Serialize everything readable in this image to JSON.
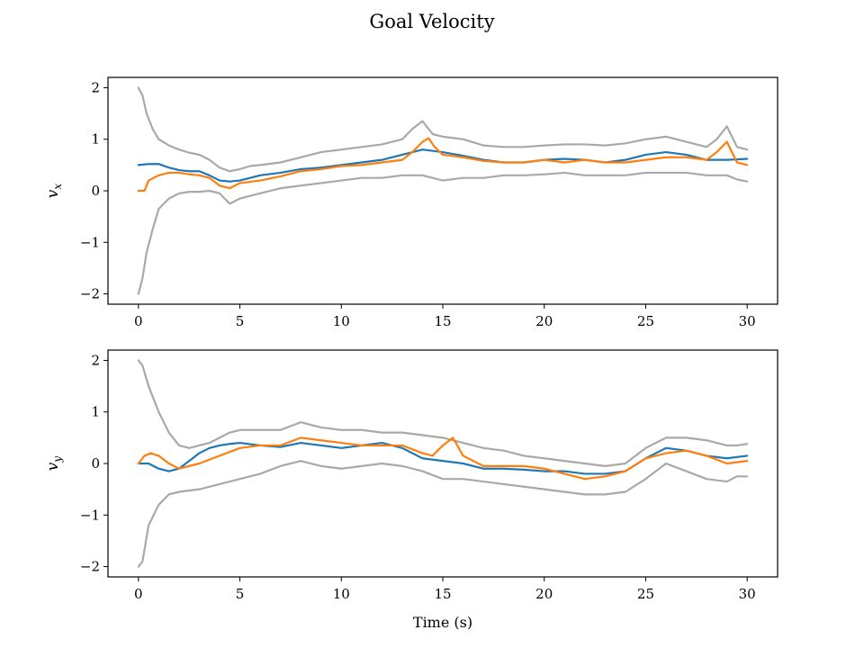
{
  "figure": {
    "title": "Goal Velocity",
    "xlabel": "Time (s)"
  },
  "chart_data": [
    {
      "type": "line",
      "title": "",
      "xlabel": "",
      "ylabel": "v_x",
      "ylabel_main": "v",
      "ylabel_sub": "x",
      "xlim": [
        -1.5,
        31.5
      ],
      "ylim": [
        -2.2,
        2.2
      ],
      "xticks": [
        0,
        5,
        10,
        15,
        20,
        25,
        30
      ],
      "yticks": [
        -2,
        -1,
        0,
        1,
        2
      ],
      "ytick_labels": [
        "−2",
        "−1",
        "0",
        "1",
        "2"
      ],
      "grid": false,
      "series": [
        {
          "color": "#a9a9a9",
          "x": [
            0,
            0.2,
            0.4,
            0.7,
            1,
            1.5,
            2,
            2.5,
            3,
            3.5,
            4,
            4.5,
            5,
            5.5,
            6,
            7,
            8,
            9,
            10,
            11,
            12,
            13,
            13.5,
            14,
            14.5,
            15,
            16,
            17,
            18,
            19,
            20,
            21,
            22,
            23,
            24,
            25,
            26,
            27,
            28,
            28.5,
            29,
            29.5,
            30
          ],
          "y": [
            2.0,
            1.85,
            1.5,
            1.2,
            1.0,
            0.88,
            0.8,
            0.74,
            0.7,
            0.6,
            0.45,
            0.38,
            0.42,
            0.48,
            0.5,
            0.55,
            0.65,
            0.75,
            0.8,
            0.85,
            0.9,
            1.0,
            1.2,
            1.35,
            1.1,
            1.05,
            1.0,
            0.88,
            0.85,
            0.85,
            0.88,
            0.9,
            0.9,
            0.88,
            0.92,
            1.0,
            1.05,
            0.95,
            0.85,
            1.0,
            1.25,
            0.85,
            0.8
          ]
        },
        {
          "color": "#a9a9a9",
          "x": [
            0,
            0.2,
            0.4,
            0.7,
            1,
            1.5,
            2,
            2.5,
            3,
            3.5,
            4,
            4.5,
            5,
            5.5,
            6,
            7,
            8,
            9,
            10,
            11,
            12,
            13,
            14,
            15,
            16,
            17,
            18,
            19,
            20,
            21,
            22,
            23,
            24,
            25,
            26,
            27,
            28,
            29,
            29.5,
            30
          ],
          "y": [
            -2.0,
            -1.7,
            -1.2,
            -0.75,
            -0.35,
            -0.15,
            -0.05,
            -0.02,
            -0.02,
            0.0,
            -0.05,
            -0.25,
            -0.15,
            -0.1,
            -0.05,
            0.05,
            0.1,
            0.15,
            0.2,
            0.25,
            0.25,
            0.3,
            0.3,
            0.2,
            0.25,
            0.25,
            0.3,
            0.3,
            0.32,
            0.35,
            0.3,
            0.3,
            0.3,
            0.35,
            0.35,
            0.35,
            0.3,
            0.3,
            0.22,
            0.18
          ]
        },
        {
          "color": "#1f77b4",
          "x": [
            0,
            0.5,
            1,
            1.5,
            2,
            2.5,
            3,
            3.5,
            4,
            4.5,
            5,
            6,
            7,
            8,
            9,
            10,
            11,
            12,
            13,
            14,
            15,
            16,
            17,
            18,
            19,
            20,
            21,
            22,
            23,
            24,
            25,
            26,
            27,
            28,
            29,
            30
          ],
          "y": [
            0.5,
            0.52,
            0.52,
            0.45,
            0.4,
            0.38,
            0.38,
            0.3,
            0.2,
            0.18,
            0.2,
            0.3,
            0.35,
            0.42,
            0.45,
            0.5,
            0.55,
            0.6,
            0.7,
            0.8,
            0.75,
            0.68,
            0.6,
            0.55,
            0.55,
            0.6,
            0.62,
            0.6,
            0.55,
            0.6,
            0.7,
            0.75,
            0.7,
            0.6,
            0.6,
            0.62
          ]
        },
        {
          "color": "#ff7f0e",
          "x": [
            0,
            0.3,
            0.5,
            1,
            1.5,
            2,
            2.5,
            3,
            3.5,
            4,
            4.5,
            5,
            6,
            7,
            8,
            9,
            10,
            11,
            12,
            13,
            13.5,
            14,
            14.3,
            14.6,
            15,
            16,
            17,
            18,
            19,
            20,
            21,
            22,
            23,
            24,
            25,
            26,
            27,
            28,
            28.5,
            29,
            29.5,
            30
          ],
          "y": [
            0.0,
            0.0,
            0.2,
            0.3,
            0.35,
            0.35,
            0.32,
            0.3,
            0.25,
            0.1,
            0.05,
            0.15,
            0.2,
            0.28,
            0.38,
            0.42,
            0.48,
            0.5,
            0.55,
            0.6,
            0.75,
            0.95,
            1.02,
            0.85,
            0.7,
            0.65,
            0.58,
            0.55,
            0.55,
            0.6,
            0.55,
            0.6,
            0.55,
            0.55,
            0.6,
            0.65,
            0.65,
            0.6,
            0.75,
            0.95,
            0.55,
            0.5
          ]
        }
      ]
    },
    {
      "type": "line",
      "title": "",
      "xlabel": "",
      "ylabel": "v_y",
      "ylabel_main": "v",
      "ylabel_sub": "y",
      "xlim": [
        -1.5,
        31.5
      ],
      "ylim": [
        -2.2,
        2.2
      ],
      "xticks": [
        0,
        5,
        10,
        15,
        20,
        25,
        30
      ],
      "yticks": [
        -2,
        -1,
        0,
        1,
        2
      ],
      "ytick_labels": [
        "−2",
        "−1",
        "0",
        "1",
        "2"
      ],
      "grid": false,
      "series": [
        {
          "color": "#a9a9a9",
          "x": [
            0,
            0.2,
            0.5,
            1,
            1.5,
            2,
            2.5,
            3,
            3.5,
            4,
            4.5,
            5,
            6,
            7,
            8,
            9,
            10,
            11,
            12,
            13,
            14,
            15,
            16,
            17,
            18,
            19,
            20,
            21,
            22,
            23,
            24,
            25,
            26,
            27,
            28,
            29,
            29.5,
            30
          ],
          "y": [
            2.0,
            1.9,
            1.5,
            1.0,
            0.6,
            0.35,
            0.3,
            0.35,
            0.4,
            0.5,
            0.6,
            0.65,
            0.65,
            0.65,
            0.8,
            0.7,
            0.65,
            0.65,
            0.6,
            0.6,
            0.55,
            0.5,
            0.4,
            0.3,
            0.25,
            0.15,
            0.1,
            0.05,
            0.0,
            -0.05,
            0.0,
            0.3,
            0.5,
            0.5,
            0.45,
            0.35,
            0.35,
            0.38
          ]
        },
        {
          "color": "#a9a9a9",
          "x": [
            0,
            0.2,
            0.5,
            1,
            1.5,
            2,
            3,
            4,
            5,
            6,
            7,
            8,
            9,
            10,
            11,
            12,
            13,
            14,
            15,
            16,
            17,
            18,
            19,
            20,
            21,
            22,
            23,
            24,
            25,
            26,
            27,
            28,
            29,
            29.5,
            30
          ],
          "y": [
            -2.0,
            -1.9,
            -1.2,
            -0.8,
            -0.6,
            -0.55,
            -0.5,
            -0.4,
            -0.3,
            -0.2,
            -0.05,
            0.05,
            -0.05,
            -0.1,
            -0.05,
            0.0,
            -0.05,
            -0.15,
            -0.3,
            -0.3,
            -0.35,
            -0.4,
            -0.45,
            -0.5,
            -0.55,
            -0.6,
            -0.6,
            -0.55,
            -0.3,
            0.0,
            -0.15,
            -0.3,
            -0.35,
            -0.25,
            -0.25
          ]
        },
        {
          "color": "#1f77b4",
          "x": [
            0,
            0.5,
            1,
            1.5,
            2,
            2.5,
            3,
            3.5,
            4,
            4.5,
            5,
            6,
            7,
            8,
            9,
            10,
            11,
            12,
            13,
            14,
            15,
            16,
            17,
            18,
            19,
            20,
            21,
            22,
            23,
            24,
            25,
            26,
            27,
            28,
            29,
            30
          ],
          "y": [
            0.0,
            0.0,
            -0.1,
            -0.15,
            -0.1,
            0.05,
            0.2,
            0.3,
            0.35,
            0.38,
            0.4,
            0.35,
            0.32,
            0.4,
            0.35,
            0.3,
            0.35,
            0.4,
            0.3,
            0.1,
            0.05,
            0.0,
            -0.1,
            -0.1,
            -0.12,
            -0.15,
            -0.15,
            -0.2,
            -0.2,
            -0.15,
            0.1,
            0.3,
            0.25,
            0.15,
            0.1,
            0.15
          ]
        },
        {
          "color": "#ff7f0e",
          "x": [
            0,
            0.3,
            0.6,
            1,
            1.5,
            2,
            3,
            4,
            5,
            6,
            7,
            8,
            9,
            10,
            11,
            12,
            13,
            14,
            14.5,
            15,
            15.5,
            16,
            17,
            18,
            19,
            20,
            21,
            22,
            23,
            24,
            25,
            26,
            27,
            28,
            29,
            30
          ],
          "y": [
            0.0,
            0.15,
            0.2,
            0.15,
            0.0,
            -0.1,
            0.0,
            0.15,
            0.3,
            0.35,
            0.35,
            0.5,
            0.45,
            0.4,
            0.35,
            0.35,
            0.35,
            0.2,
            0.15,
            0.35,
            0.5,
            0.15,
            -0.05,
            -0.05,
            -0.05,
            -0.1,
            -0.2,
            -0.3,
            -0.25,
            -0.15,
            0.1,
            0.2,
            0.25,
            0.15,
            0.0,
            0.05
          ]
        }
      ]
    }
  ]
}
